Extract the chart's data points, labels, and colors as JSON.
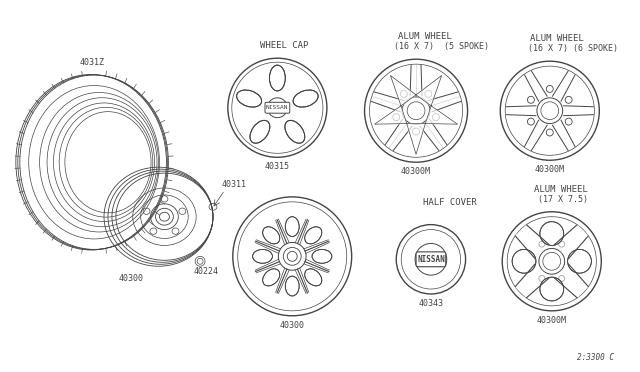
{
  "bg_color": "#ffffff",
  "line_color": "#444444",
  "footer": "2:3300 C",
  "labels": {
    "tire": "4031Z",
    "wheel": "40300",
    "valve": "40311",
    "nut": "40224",
    "wheel_cap_title": "WHEEL CAP",
    "wheel_cap_num": "40315",
    "alum5_title1": "ALUM WHEEL",
    "alum5_title2": "(16 X 7)  (5 SPOKE)",
    "alum5_num": "40300M",
    "alum6_title1": "ALUM WHEEL",
    "alum6_title2": "(16 X 7) (6 SPOKE)",
    "alum6_num": "40300M",
    "alum4_title1": "ALUM WHEEL",
    "alum4_title2": "(17 X 7.5)",
    "alum4_num": "40300M",
    "half_cover_title": "HALF COVER",
    "half_cover_num": "40343",
    "steel_wheel_num": "40300"
  },
  "font_size_label": 6.0,
  "font_size_title": 6.5
}
